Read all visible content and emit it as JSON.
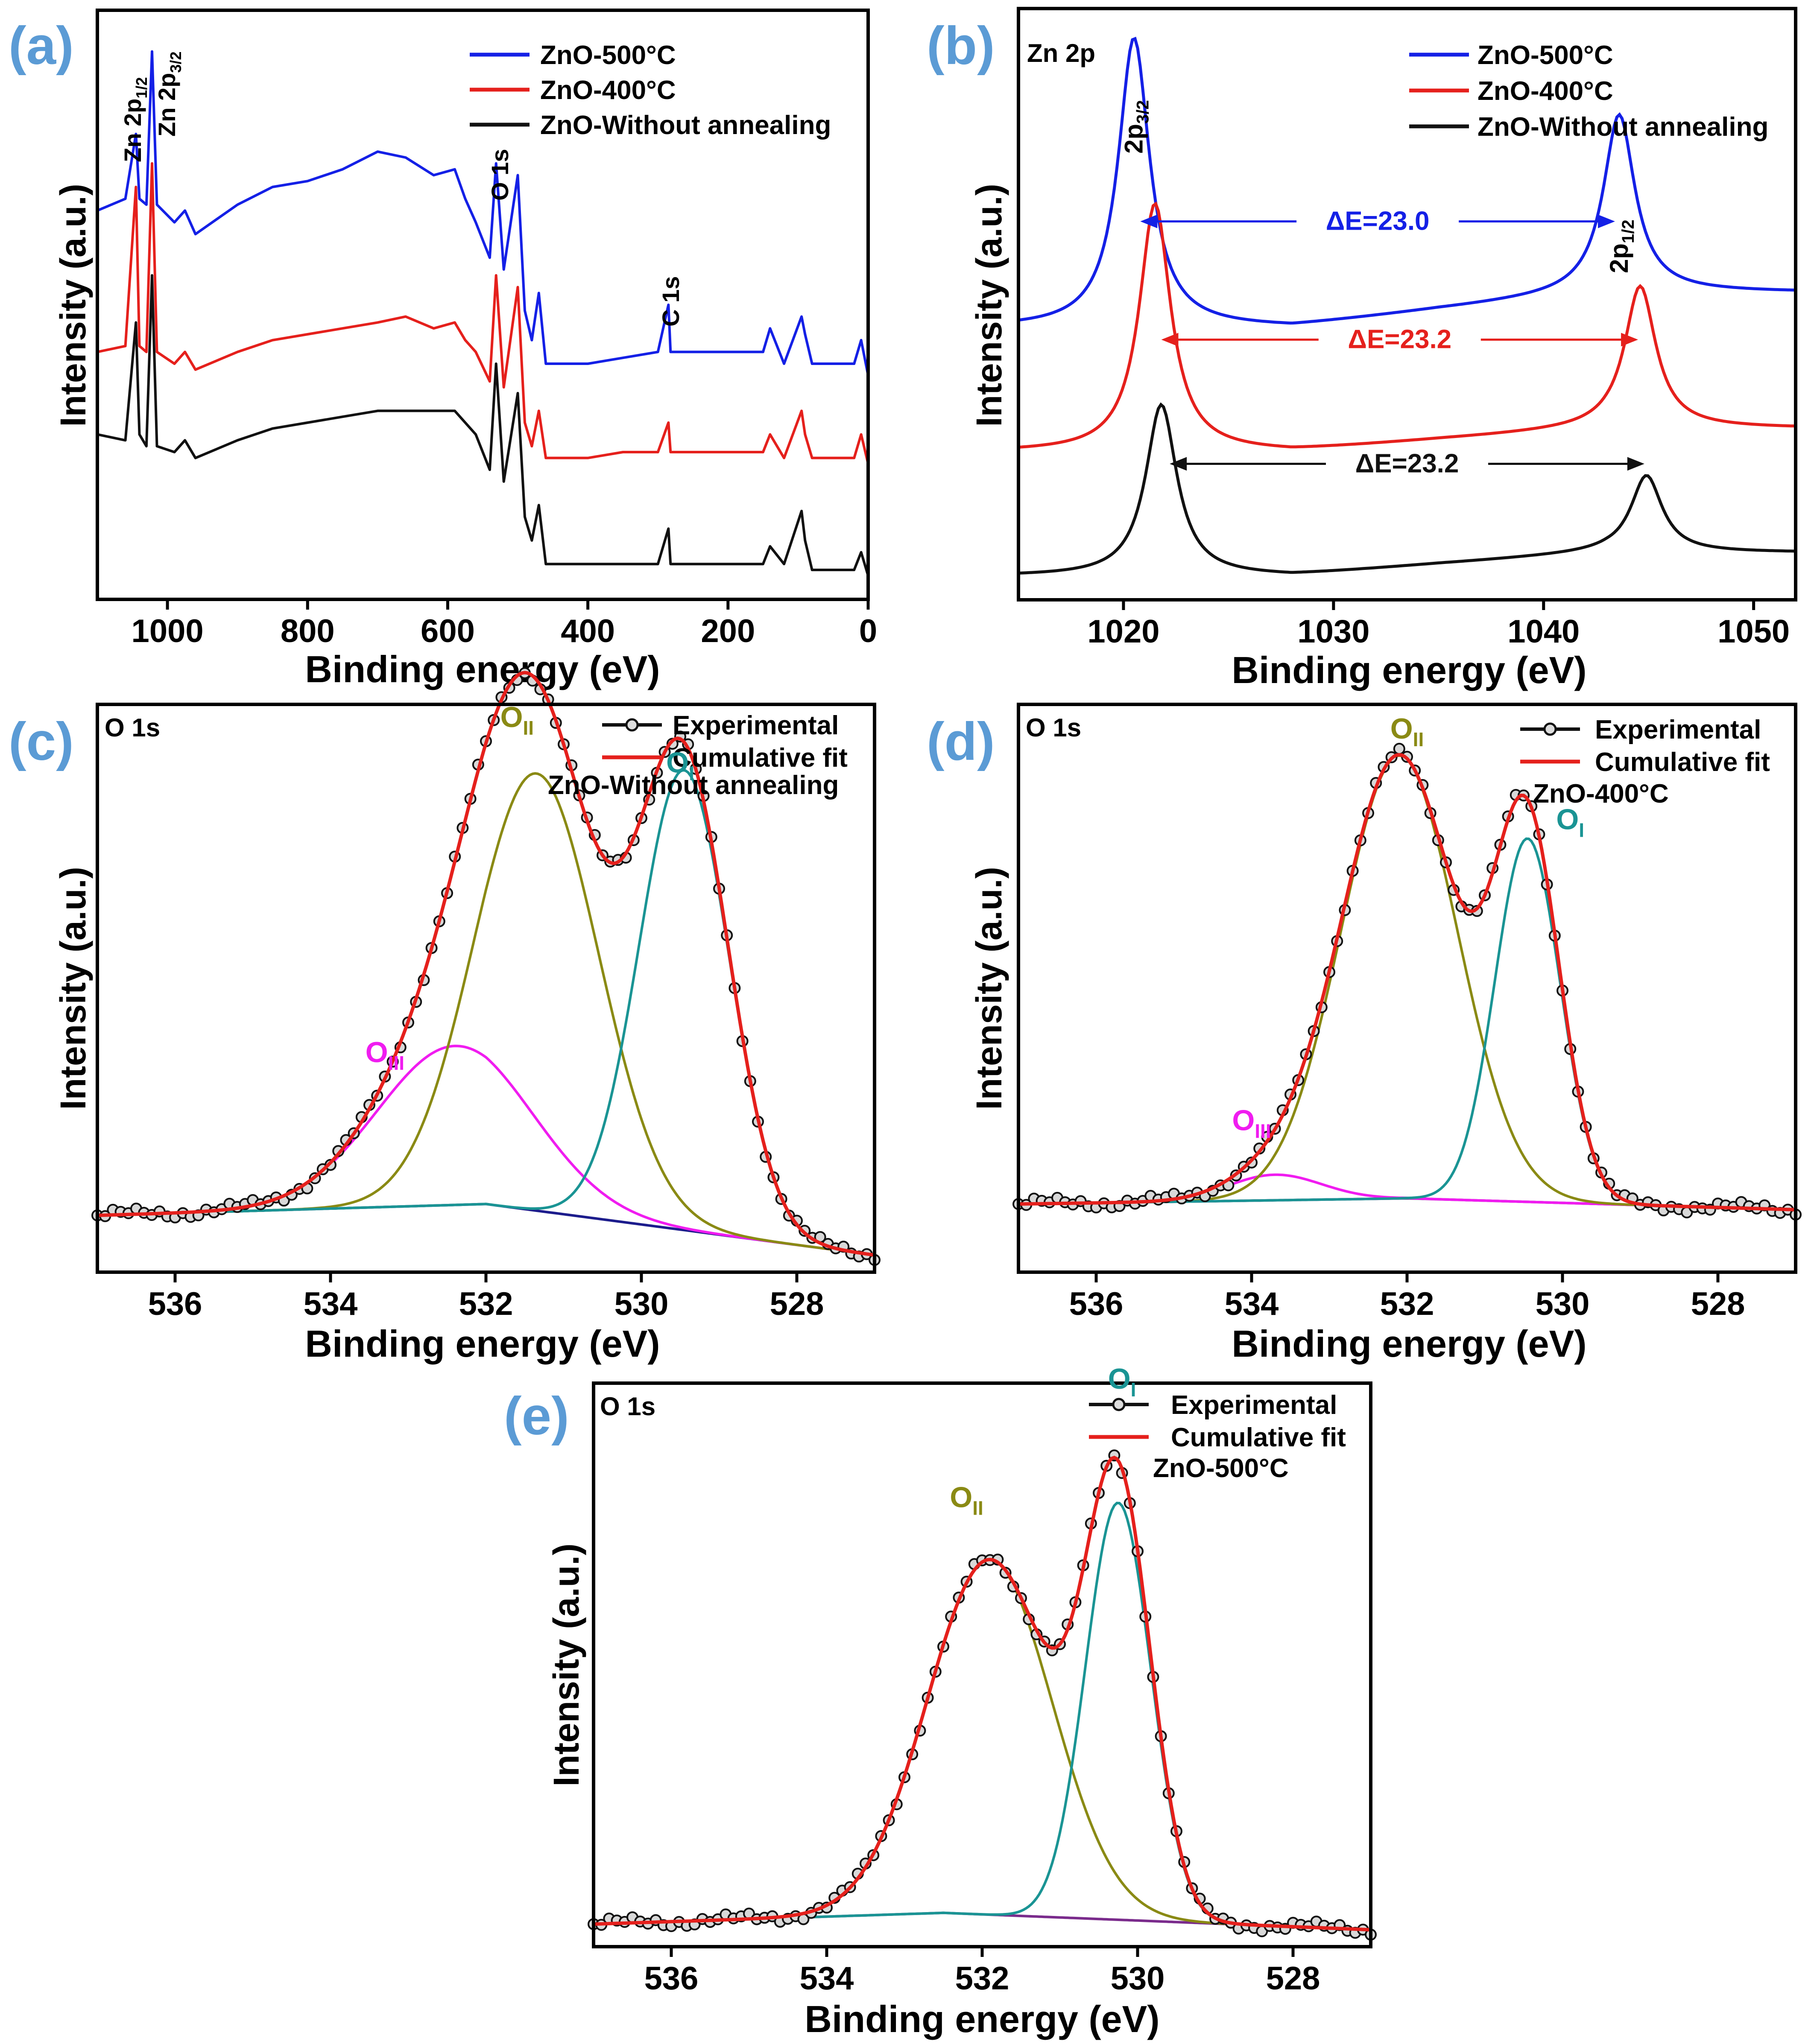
{
  "colors": {
    "blue": "#1420e6",
    "red": "#e5201c",
    "black": "#111111",
    "olive": "#8a8a14",
    "teal": "#1a9494",
    "magenta": "#f01cf0",
    "navy": "#1c1c8c",
    "purple": "#7a2b8c",
    "panel_label": "#5b9bd5"
  },
  "chart_data": [
    {
      "panel": "(a)",
      "type": "line",
      "xlabel": "Binding energy (eV)",
      "ylabel": "Intensity (a.u.)",
      "xlim": [
        1100,
        0
      ],
      "ylim": [
        0,
        100
      ],
      "xticks": [
        "1000",
        "800",
        "600",
        "400",
        "200",
        "0"
      ],
      "xtick_values": [
        1000,
        800,
        600,
        400,
        200,
        0
      ],
      "legend": [
        "ZnO-500°C",
        "ZnO-400°C",
        "ZnO-Without annealing"
      ],
      "series": [
        {
          "name": "ZnO-500°C",
          "color": "blue",
          "x": [
            1100,
            1060,
            1045,
            1040,
            1030,
            1022,
            1015,
            990,
            975,
            960,
            900,
            850,
            800,
            750,
            700,
            660,
            620,
            590,
            575,
            560,
            540,
            531,
            520,
            500,
            490,
            480,
            470,
            460,
            450,
            400,
            350,
            300,
            285,
            282,
            275,
            200,
            150,
            140,
            120,
            95,
            90,
            80,
            20,
            10,
            0
          ],
          "y": [
            66,
            68,
            79,
            68,
            67,
            93,
            67,
            64,
            66,
            62,
            67,
            70,
            71,
            73,
            76,
            75,
            72,
            73,
            68,
            64,
            58,
            74,
            56,
            72,
            49,
            44,
            52,
            40,
            40,
            40,
            41,
            42,
            50,
            42,
            42,
            42,
            42,
            46,
            40,
            48,
            45,
            40,
            40,
            44,
            38
          ]
        },
        {
          "name": "ZnO-400°C",
          "color": "red",
          "x": [
            1100,
            1060,
            1045,
            1040,
            1030,
            1022,
            1015,
            990,
            975,
            960,
            900,
            850,
            800,
            750,
            700,
            660,
            620,
            590,
            575,
            560,
            540,
            531,
            520,
            500,
            490,
            480,
            470,
            460,
            450,
            400,
            350,
            300,
            285,
            282,
            275,
            200,
            150,
            140,
            120,
            95,
            90,
            80,
            20,
            10,
            0
          ],
          "y": [
            42,
            43,
            70,
            43,
            42,
            74,
            42,
            40,
            42,
            39,
            42,
            44,
            45,
            46,
            47,
            48,
            46,
            47,
            44,
            42,
            37,
            55,
            36,
            53,
            30,
            26,
            32,
            24,
            24,
            24,
            25,
            25,
            30,
            25,
            25,
            25,
            25,
            28,
            24,
            32,
            28,
            24,
            24,
            28,
            23
          ]
        },
        {
          "name": "ZnO-Without annealing",
          "color": "black",
          "x": [
            1100,
            1060,
            1045,
            1040,
            1030,
            1022,
            1015,
            990,
            975,
            960,
            900,
            850,
            800,
            750,
            700,
            660,
            620,
            590,
            575,
            560,
            540,
            531,
            520,
            500,
            490,
            480,
            470,
            460,
            450,
            400,
            350,
            300,
            285,
            282,
            275,
            200,
            150,
            140,
            120,
            95,
            90,
            80,
            20,
            10,
            0
          ],
          "y": [
            28,
            27,
            47,
            28,
            26,
            55,
            26,
            25,
            27,
            24,
            27,
            29,
            30,
            31,
            32,
            32,
            32,
            32,
            30,
            28,
            22,
            40,
            20,
            35,
            14,
            10,
            16,
            6,
            6,
            6,
            6,
            6,
            12,
            6,
            6,
            6,
            6,
            9,
            6,
            15,
            10,
            5,
            5,
            8,
            4
          ]
        }
      ],
      "annotations": [
        {
          "base": "Zn 2p",
          "sub": "1/2",
          "x": 1050
        },
        {
          "base": "Zn 2p",
          "sub": "3/2",
          "x": 1022
        },
        {
          "text": "O 1s",
          "x": 531
        },
        {
          "text": "C 1s",
          "x": 285
        }
      ]
    },
    {
      "panel": "(b)",
      "type": "line",
      "title": "Zn 2p",
      "xlabel": "Binding energy (eV)",
      "ylabel": "Intensity (a.u.)",
      "xlim": [
        1015,
        1052
      ],
      "ylim": [
        0,
        100
      ],
      "xticks": [
        "1020",
        "1030",
        "1040",
        "1050"
      ],
      "xtick_values": [
        1020,
        1030,
        1040,
        1050
      ],
      "legend": [
        "ZnO-500°C",
        "ZnO-400°C",
        "ZnO-Without annealing"
      ],
      "series": [
        {
          "name": "ZnO-500°C",
          "color": "blue",
          "offset": 46,
          "peaks": [
            [
              1020.5,
              49,
              0.9
            ],
            [
              1043.6,
              30,
              0.9
            ]
          ],
          "bg_steps": [
            [
              1025,
              0
            ],
            [
              1028,
              0
            ],
            [
              1035,
              3
            ],
            [
              1043,
              6
            ],
            [
              1052,
              6
            ]
          ]
        },
        {
          "name": "ZnO-400°C",
          "color": "red",
          "offset": 25,
          "peaks": [
            [
              1021.5,
              42,
              0.9
            ],
            [
              1044.6,
              24,
              0.9
            ]
          ],
          "bg_steps": [
            [
              1025,
              0
            ],
            [
              1028,
              0
            ],
            [
              1035,
              2
            ],
            [
              1043,
              4
            ],
            [
              1052,
              4
            ]
          ]
        },
        {
          "name": "ZnO-Without annealing",
          "color": "black",
          "offset": 4,
          "peaks": [
            [
              1021.8,
              29,
              0.9
            ],
            [
              1044.9,
              13,
              0.9
            ]
          ],
          "bg_steps": [
            [
              1025,
              0
            ],
            [
              1028,
              0
            ],
            [
              1035,
              2
            ],
            [
              1043,
              4
            ],
            [
              1052,
              4
            ]
          ]
        }
      ],
      "peak_labels": [
        {
          "base": "2p",
          "sub": "3/2",
          "x": 1020.5
        },
        {
          "base": "2p",
          "sub": "1/2",
          "x": 1043.6
        }
      ],
      "arrows": [
        {
          "text": "ΔE=23.0",
          "color": "blue",
          "x_from": 1020.8,
          "x_to": 1043.4,
          "y": 64
        },
        {
          "text": "ΔE=23.2",
          "color": "red",
          "x_from": 1021.8,
          "x_to": 1044.5,
          "y": 44
        },
        {
          "text": "ΔE=23.2",
          "color": "black",
          "x_from": 1022.2,
          "x_to": 1044.8,
          "y": 23
        }
      ]
    },
    {
      "panel": "(c)",
      "type": "line",
      "title": "O 1s",
      "sample": "ZnO-Without annealing",
      "xlabel": "Binding energy (eV)",
      "ylabel": "Intensity (a.u.)",
      "xlim": [
        537,
        527
      ],
      "ylim": [
        0,
        100
      ],
      "xticks": [
        "536",
        "534",
        "532",
        "530",
        "528"
      ],
      "xtick_values": [
        536,
        534,
        532,
        530,
        528
      ],
      "legend": [
        "Experimental",
        "Cumulative fit"
      ],
      "background": {
        "x": [
          537,
          532,
          527
        ],
        "y": [
          10,
          12,
          3
        ]
      },
      "components": [
        {
          "name": "O_III",
          "color": "magenta",
          "center": 532.4,
          "height": 28,
          "sigma": 1.0
        },
        {
          "name": "O_II",
          "color": "olive",
          "center": 531.35,
          "height": 77,
          "sigma": 0.8
        },
        {
          "name": "O_I",
          "color": "teal",
          "center": 529.45,
          "height": 81,
          "sigma": 0.58
        }
      ],
      "component_labels": [
        {
          "base": "O",
          "sub": "III",
          "x": 533.3,
          "y": 37,
          "color": "magenta"
        },
        {
          "base": "O",
          "sub": "II",
          "x": 531.6,
          "y": 96,
          "color": "olive"
        },
        {
          "base": "O",
          "sub": "I",
          "x": 529.5,
          "y": 88,
          "color": "teal"
        }
      ]
    },
    {
      "panel": "(d)",
      "type": "line",
      "title": "O 1s",
      "sample": "ZnO-400°C",
      "xlabel": "Binding energy (eV)",
      "ylabel": "Intensity (a.u.)",
      "xlim": [
        537,
        527
      ],
      "ylim": [
        0,
        100
      ],
      "xticks": [
        "536",
        "534",
        "532",
        "530",
        "528"
      ],
      "xtick_values": [
        536,
        534,
        532,
        530,
        528
      ],
      "legend": [
        "Experimental",
        "Cumulative fit"
      ],
      "background": {
        "x": [
          537,
          532,
          527
        ],
        "y": [
          12,
          13,
          11
        ]
      },
      "components": [
        {
          "name": "O_III",
          "color": "magenta",
          "center": 533.7,
          "height": 4.5,
          "sigma": 0.6
        },
        {
          "name": "O_II",
          "color": "olive",
          "center": 532.1,
          "height": 78,
          "sigma": 0.75
        },
        {
          "name": "O_I",
          "color": "teal",
          "center": 530.45,
          "height": 64,
          "sigma": 0.42
        }
      ],
      "component_labels": [
        {
          "base": "O",
          "sub": "III",
          "x": 534.0,
          "y": 25,
          "color": "magenta"
        },
        {
          "base": "O",
          "sub": "II",
          "x": 532.0,
          "y": 94,
          "color": "olive"
        },
        {
          "base": "O",
          "sub": "I",
          "x": 529.9,
          "y": 78,
          "color": "teal"
        }
      ]
    },
    {
      "panel": "(e)",
      "type": "line",
      "title": "O 1s",
      "sample": "ZnO-500°C",
      "xlabel": "Binding energy (eV)",
      "ylabel": "Intensity (a.u.)",
      "xlim": [
        537,
        527
      ],
      "ylim": [
        0,
        100
      ],
      "xticks": [
        "536",
        "534",
        "532",
        "530",
        "528"
      ],
      "xtick_values": [
        536,
        534,
        532,
        530,
        528
      ],
      "legend": [
        "Experimental",
        "Cumulative fit"
      ],
      "background": {
        "x": [
          537,
          532.5,
          527
        ],
        "y": [
          4,
          6,
          3
        ]
      },
      "components": [
        {
          "name": "O_II",
          "color": "olive",
          "center": 531.9,
          "height": 63,
          "sigma": 0.8
        },
        {
          "name": "O_I",
          "color": "teal",
          "center": 530.25,
          "height": 74,
          "sigma": 0.42
        }
      ],
      "component_labels": [
        {
          "base": "O",
          "sub": "II",
          "x": 532.2,
          "y": 78,
          "color": "olive"
        },
        {
          "base": "O",
          "sub": "I",
          "x": 530.2,
          "y": 99,
          "color": "teal"
        }
      ]
    }
  ]
}
